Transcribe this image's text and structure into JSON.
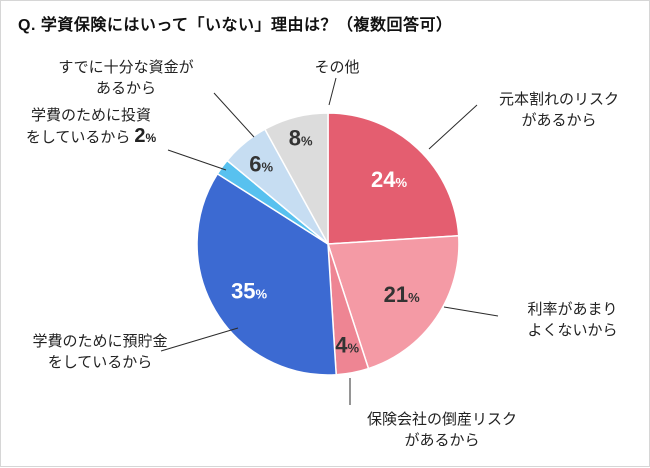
{
  "title": "Q. 学資保険にはいって「いない」理由は？（複数回答可）",
  "chart_data": {
    "type": "pie",
    "title": "学資保険にはいって「いない」理由（複数回答可）",
    "unit": "%",
    "direction": "clockwise",
    "start_angle_deg": 0,
    "slices": [
      {
        "label": "元本割れのリスクがあるから",
        "value": 24,
        "color": "#e45e70",
        "pct_text_color": "#ffffff",
        "pct_inside": true,
        "pct_in_callout": false,
        "callout_lines": [
          "元本割れのリスク",
          "があるから"
        ]
      },
      {
        "label": "利率があまりよくないから",
        "value": 21,
        "color": "#f49aa5",
        "pct_text_color": "#333333",
        "pct_inside": true,
        "pct_in_callout": false,
        "callout_lines": [
          "利率があまり",
          "よくないから"
        ]
      },
      {
        "label": "保険会社の倒産リスクがあるから",
        "value": 4,
        "color": "#ee8593",
        "pct_text_color": "#333333",
        "pct_inside": true,
        "pct_in_callout": false,
        "callout_lines": [
          "保険会社の倒産リスク",
          "があるから"
        ]
      },
      {
        "label": "学費のために預貯金をしているから",
        "value": 35,
        "color": "#3c6ad2",
        "pct_text_color": "#ffffff",
        "pct_inside": true,
        "pct_in_callout": false,
        "callout_lines": [
          "学費のために預貯金",
          "をしているから"
        ]
      },
      {
        "label": "学費のために投資をしているから",
        "value": 2,
        "color": "#58c1ef",
        "pct_text_color": "#333333",
        "pct_inside": false,
        "pct_in_callout": true,
        "callout_lines": [
          "学費のために投資",
          "をしているから"
        ]
      },
      {
        "label": "すでに十分な資金があるから",
        "value": 6,
        "color": "#c6ddf2",
        "pct_text_color": "#333333",
        "pct_inside": true,
        "pct_in_callout": false,
        "callout_lines": [
          "すでに十分な資金が",
          "あるから"
        ]
      },
      {
        "label": "その他",
        "value": 8,
        "color": "#dcdcdc",
        "pct_text_color": "#333333",
        "pct_inside": true,
        "pct_in_callout": false,
        "callout_lines": [
          "その他"
        ]
      }
    ]
  }
}
